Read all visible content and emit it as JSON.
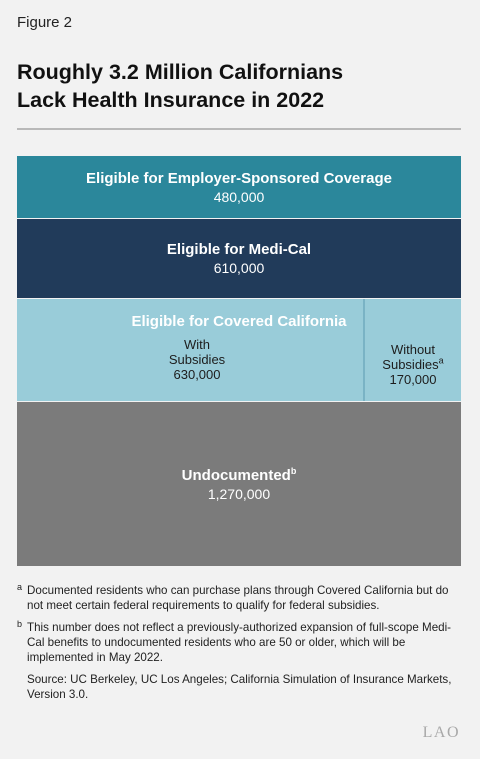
{
  "figure_label": "Figure 2",
  "title": [
    "Roughly 3.2 Million Californians",
    "Lack Health Insurance in 2022"
  ],
  "chart_data": {
    "type": "stacked-block",
    "unit": "people",
    "total": 3160000,
    "blocks": [
      {
        "name": "Eligible for Employer-Sponsored Coverage",
        "value": 480000,
        "label": "480,000",
        "color": "#2b879b"
      },
      {
        "name": "Eligible for Medi-Cal",
        "value": 610000,
        "label": "610,000",
        "color": "#213b5a"
      },
      {
        "name": "Eligible for Covered California",
        "color": "#99ccd9",
        "parts": [
          {
            "name_lines": [
              "With",
              "Subsidies"
            ],
            "value": 630000,
            "label": "630,000"
          },
          {
            "name_lines": [
              "Without",
              "Subsidies"
            ],
            "note_mark": "a",
            "value": 170000,
            "label": "170,000"
          }
        ]
      },
      {
        "name": "Undocumented",
        "note_mark": "b",
        "value": 1270000,
        "label": "1,270,000",
        "color": "#7b7b7b"
      }
    ]
  },
  "notes": [
    {
      "mark": "a",
      "text": "Documented residents who can purchase plans through Covered California but do not meet certain federal requirements to qualify for federal subsidies."
    },
    {
      "mark": "b",
      "text": "This number does not reflect a previously-authorized expansion of full-scope Medi-Cal benefits to undocumented residents who are 50 or older, which will be implemented in May 2022."
    }
  ],
  "source": "Source: UC Berkeley, UC Los Angeles; California Simulation of Insurance Markets, Version 3.0.",
  "logo": "LAO"
}
